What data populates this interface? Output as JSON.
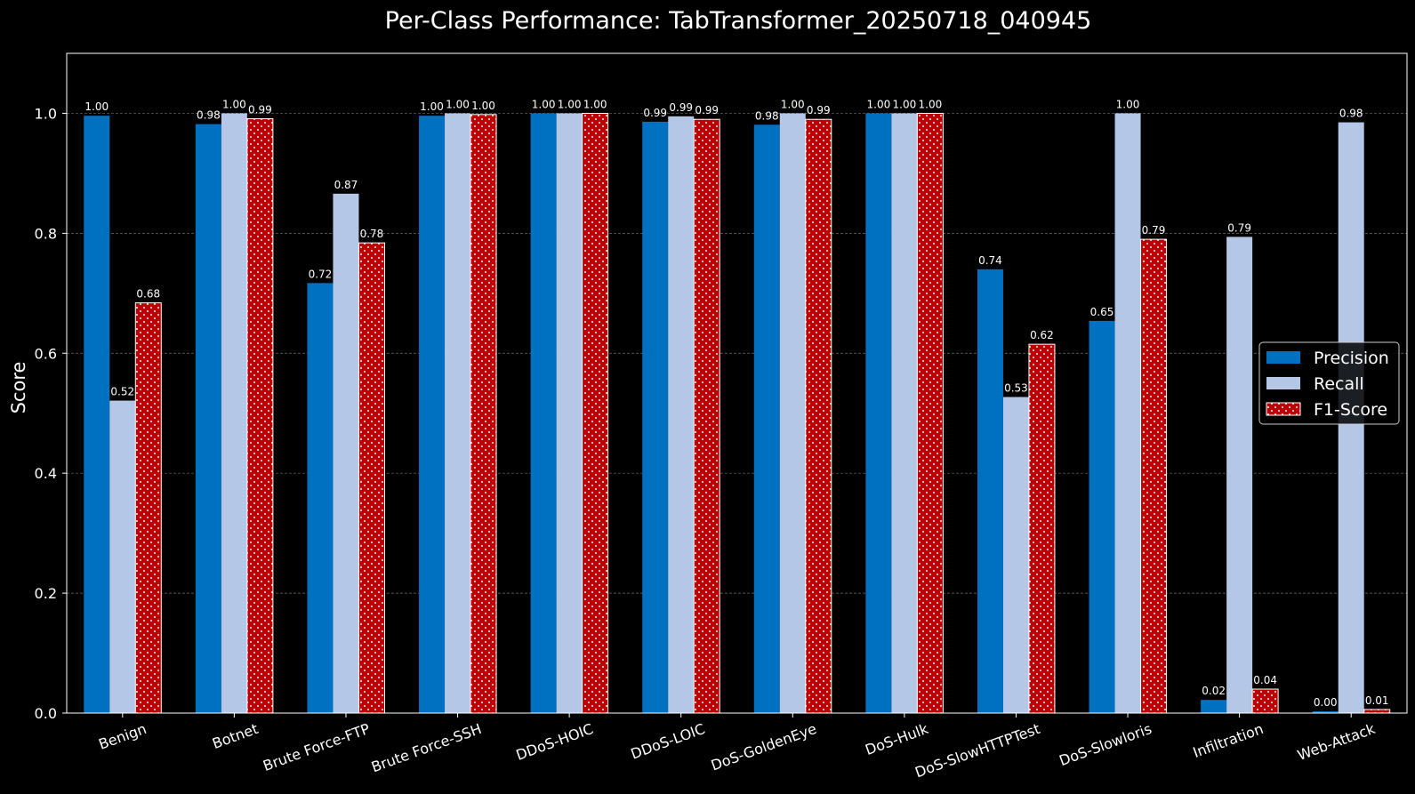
{
  "chart_data": {
    "type": "bar",
    "title": "Per-Class Performance: TabTransformer_20250718_040945",
    "xlabel": "",
    "ylabel": "Score",
    "ylim": [
      0,
      1.1
    ],
    "yticks": [
      "0.0",
      "0.2",
      "0.4",
      "0.6",
      "0.8",
      "1.0"
    ],
    "grid": true,
    "legend_position": "center-right",
    "categories": [
      "Benign",
      "Botnet",
      "Brute Force-FTP",
      "Brute Force-SSH",
      "DDoS-HOIC",
      "DDoS-LOIC",
      "DoS-GoldenEye",
      "DoS-Hulk",
      "DoS-SlowHTTPTest",
      "DoS-Slowloris",
      "Infiltration",
      "Web-Attack"
    ],
    "series": [
      {
        "name": "Precision",
        "color": "#0070c0",
        "pattern": "solid",
        "values": [
          0.996,
          0.982,
          0.717,
          0.996,
          1.0,
          0.986,
          0.981,
          1.0,
          0.74,
          0.654,
          0.022,
          0.003
        ],
        "labels": [
          "1.00",
          "0.98",
          "0.72",
          "1.00",
          "1.00",
          "0.99",
          "0.98",
          "1.00",
          "0.74",
          "0.65",
          "0.02",
          "0.00"
        ]
      },
      {
        "name": "Recall",
        "color": "#b4c7e7",
        "pattern": "solid",
        "values": [
          0.521,
          1.0,
          0.866,
          1.0,
          1.0,
          0.995,
          1.0,
          1.0,
          0.527,
          1.0,
          0.794,
          0.985
        ],
        "labels": [
          "0.52",
          "1.00",
          "0.87",
          "1.00",
          "1.00",
          "0.99",
          "1.00",
          "1.00",
          "0.53",
          "1.00",
          "0.79",
          "0.98"
        ]
      },
      {
        "name": "F1-Score",
        "color": "#c00000",
        "pattern": "dots",
        "values": [
          0.684,
          0.991,
          0.784,
          0.998,
          1.0,
          0.99,
          0.99,
          1.0,
          0.615,
          0.79,
          0.04,
          0.006
        ],
        "labels": [
          "0.68",
          "0.99",
          "0.78",
          "1.00",
          "1.00",
          "0.99",
          "0.99",
          "1.00",
          "0.62",
          "0.79",
          "0.04",
          "0.01"
        ]
      }
    ]
  }
}
